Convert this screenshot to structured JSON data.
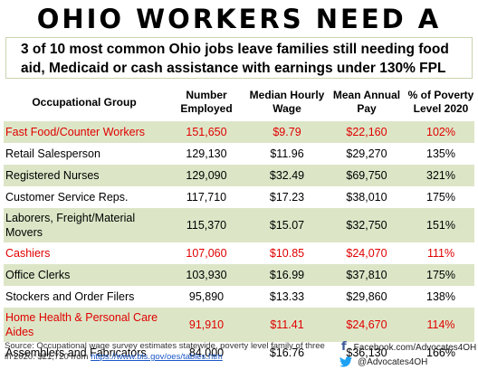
{
  "title": "OHIO WORKERS NEED A RAISE",
  "subtitle": "3 of 10 most common Ohio jobs leave families still needing food aid, Medicaid or cash assistance with earnings under 130% FPL",
  "headers": {
    "group": "Occupational Group",
    "employed": "Number Employed",
    "wage": "Median Hourly Wage",
    "pay": "Mean Annual Pay",
    "poverty": "% of Poverty Level 2020"
  },
  "rows": [
    {
      "group": "Fast Food/Counter Workers",
      "employed": "151,650",
      "wage": "$9.79",
      "pay": "$22,160",
      "poverty": "102%",
      "highlight": true
    },
    {
      "group": "Retail Salesperson",
      "employed": "129,130",
      "wage": "$11.96",
      "pay": "$29,270",
      "poverty": "135%",
      "highlight": false
    },
    {
      "group": "Registered Nurses",
      "employed": "129,090",
      "wage": "$32.49",
      "pay": "$69,750",
      "poverty": "321%",
      "highlight": false
    },
    {
      "group": "Customer Service Reps.",
      "employed": "117,710",
      "wage": "$17.23",
      "pay": "$38,010",
      "poverty": "175%",
      "highlight": false
    },
    {
      "group": "Laborers, Freight/Material Movers",
      "employed": "115,370",
      "wage": "$15.07",
      "pay": "$32,750",
      "poverty": "151%",
      "highlight": false
    },
    {
      "group": "Cashiers",
      "employed": "107,060",
      "wage": "$10.85",
      "pay": "$24,070",
      "poverty": "111%",
      "highlight": true
    },
    {
      "group": "Office Clerks",
      "employed": "103,930",
      "wage": "$16.99",
      "pay": "$37,810",
      "poverty": "175%",
      "highlight": false
    },
    {
      "group": "Stockers and Order Filers",
      "employed": "95,890",
      "wage": "$13.33",
      "pay": "$29,860",
      "poverty": "138%",
      "highlight": false
    },
    {
      "group": "Home Health & Personal Care Aides",
      "employed": "91,910",
      "wage": "$11.41",
      "pay": "$24,670",
      "poverty": "114%",
      "highlight": true
    },
    {
      "group": "Assemblers and Fabricators",
      "employed": "84,000",
      "wage": "$16.76",
      "pay": "$36,130",
      "poverty": "166%",
      "highlight": false
    }
  ],
  "source": {
    "text": "Source: Occupational wage survey estimates statewide, poverty level family of three in 2020: $21,720 from ",
    "link": "https://www.bls.gov/oes/tables.htm"
  },
  "social": {
    "facebook": "Facebook.com/Advocates4OH",
    "twitter": "@Advocates4OH"
  },
  "colors": {
    "highlight_text": "#e00000",
    "green_band": "#dce6c7",
    "facebook": "#3b5998",
    "twitter": "#1da1f2"
  },
  "icons": [
    "facebook-icon",
    "twitter-icon"
  ]
}
